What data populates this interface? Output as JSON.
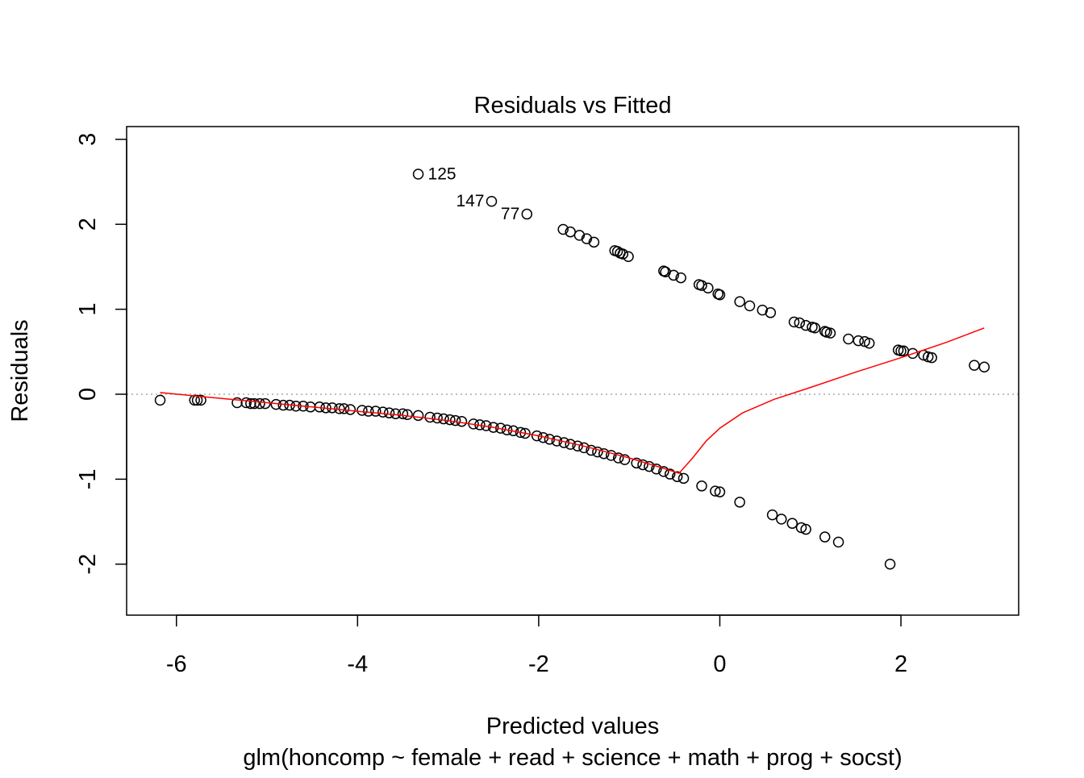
{
  "chart_data": {
    "type": "scatter",
    "title": "Residuals vs Fitted",
    "xlabel": "Predicted values",
    "subtitle": "glm(honcomp ~ female + read + science + math + prog + socst)",
    "ylabel": "Residuals",
    "xlim": [
      -6.55,
      3.3
    ],
    "ylim": [
      -2.6,
      3.15
    ],
    "xticks": [
      -6,
      -4,
      -2,
      0,
      2
    ],
    "yticks": [
      -2,
      -1,
      0,
      1,
      2,
      3
    ],
    "xtick_labels": [
      "-6",
      "-4",
      "-2",
      "0",
      "2"
    ],
    "ytick_labels": [
      "-2",
      "-1",
      "0",
      "1",
      "2",
      "3"
    ],
    "reference_line_y": 0,
    "colors": {
      "points": "#000000",
      "smooth": "#ff0000",
      "reference": "#bebebe"
    },
    "grid": false,
    "legend": "none",
    "labeled_points": [
      {
        "label": "125",
        "x": -3.33,
        "y": 2.59
      },
      {
        "label": "147",
        "x": -2.52,
        "y": 2.27
      },
      {
        "label": "77",
        "x": -2.13,
        "y": 2.12
      }
    ],
    "series": [
      {
        "points": [
          [
            -3.33,
            2.59
          ],
          [
            -2.52,
            2.27
          ],
          [
            -2.13,
            2.12
          ],
          [
            -1.73,
            1.94
          ],
          [
            -1.65,
            1.91
          ],
          [
            -1.55,
            1.87
          ],
          [
            -1.47,
            1.83
          ],
          [
            -1.39,
            1.79
          ],
          [
            -1.16,
            1.69
          ],
          [
            -1.13,
            1.68
          ],
          [
            -1.1,
            1.66
          ],
          [
            -1.07,
            1.65
          ],
          [
            -1.01,
            1.62
          ],
          [
            -0.62,
            1.45
          ],
          [
            -0.6,
            1.44
          ],
          [
            -0.51,
            1.4
          ],
          [
            -0.43,
            1.37
          ],
          [
            -0.23,
            1.29
          ],
          [
            -0.2,
            1.28
          ],
          [
            -0.13,
            1.25
          ],
          [
            -0.02,
            1.18
          ],
          [
            0.0,
            1.17
          ],
          [
            0.22,
            1.09
          ],
          [
            0.33,
            1.04
          ],
          [
            0.47,
            0.99
          ],
          [
            0.56,
            0.96
          ],
          [
            0.82,
            0.85
          ],
          [
            0.88,
            0.84
          ],
          [
            0.95,
            0.81
          ],
          [
            1.02,
            0.79
          ],
          [
            1.05,
            0.78
          ],
          [
            1.16,
            0.74
          ],
          [
            1.18,
            0.73
          ],
          [
            1.22,
            0.72
          ],
          [
            1.42,
            0.65
          ],
          [
            1.53,
            0.63
          ],
          [
            1.6,
            0.62
          ],
          [
            1.65,
            0.6
          ],
          [
            1.97,
            0.52
          ],
          [
            2.0,
            0.51
          ],
          [
            2.03,
            0.51
          ],
          [
            2.13,
            0.48
          ],
          [
            2.25,
            0.46
          ],
          [
            2.3,
            0.44
          ],
          [
            2.34,
            0.43
          ],
          [
            2.81,
            0.34
          ],
          [
            2.92,
            0.32
          ],
          [
            -6.18,
            -0.07
          ],
          [
            -5.8,
            -0.07
          ],
          [
            -5.77,
            -0.07
          ],
          [
            -5.73,
            -0.07
          ],
          [
            -5.33,
            -0.1
          ],
          [
            -5.23,
            -0.1
          ],
          [
            -5.18,
            -0.11
          ],
          [
            -5.14,
            -0.11
          ],
          [
            -5.08,
            -0.11
          ],
          [
            -5.02,
            -0.11
          ],
          [
            -4.9,
            -0.12
          ],
          [
            -4.82,
            -0.13
          ],
          [
            -4.75,
            -0.13
          ],
          [
            -4.68,
            -0.14
          ],
          [
            -4.6,
            -0.14
          ],
          [
            -4.52,
            -0.15
          ],
          [
            -4.42,
            -0.15
          ],
          [
            -4.35,
            -0.16
          ],
          [
            -4.28,
            -0.16
          ],
          [
            -4.2,
            -0.17
          ],
          [
            -4.15,
            -0.17
          ],
          [
            -4.08,
            -0.18
          ],
          [
            -3.95,
            -0.19
          ],
          [
            -3.88,
            -0.2
          ],
          [
            -3.8,
            -0.2
          ],
          [
            -3.72,
            -0.21
          ],
          [
            -3.65,
            -0.22
          ],
          [
            -3.58,
            -0.23
          ],
          [
            -3.5,
            -0.23
          ],
          [
            -3.45,
            -0.24
          ],
          [
            -3.33,
            -0.25
          ],
          [
            -3.2,
            -0.27
          ],
          [
            -3.12,
            -0.28
          ],
          [
            -3.05,
            -0.29
          ],
          [
            -2.98,
            -0.3
          ],
          [
            -2.92,
            -0.31
          ],
          [
            -2.85,
            -0.32
          ],
          [
            -2.72,
            -0.35
          ],
          [
            -2.65,
            -0.36
          ],
          [
            -2.58,
            -0.37
          ],
          [
            -2.5,
            -0.39
          ],
          [
            -2.42,
            -0.4
          ],
          [
            -2.35,
            -0.42
          ],
          [
            -2.28,
            -0.43
          ],
          [
            -2.2,
            -0.45
          ],
          [
            -2.15,
            -0.46
          ],
          [
            -2.02,
            -0.49
          ],
          [
            -1.95,
            -0.51
          ],
          [
            -1.88,
            -0.53
          ],
          [
            -1.8,
            -0.55
          ],
          [
            -1.72,
            -0.57
          ],
          [
            -1.65,
            -0.59
          ],
          [
            -1.57,
            -0.61
          ],
          [
            -1.5,
            -0.63
          ],
          [
            -1.42,
            -0.66
          ],
          [
            -1.35,
            -0.68
          ],
          [
            -1.28,
            -0.7
          ],
          [
            -1.2,
            -0.72
          ],
          [
            -1.12,
            -0.75
          ],
          [
            -1.05,
            -0.77
          ],
          [
            -0.92,
            -0.81
          ],
          [
            -0.85,
            -0.83
          ],
          [
            -0.78,
            -0.85
          ],
          [
            -0.7,
            -0.88
          ],
          [
            -0.62,
            -0.91
          ],
          [
            -0.55,
            -0.94
          ],
          [
            -0.47,
            -0.97
          ],
          [
            -0.4,
            -0.99
          ],
          [
            -0.2,
            -1.08
          ],
          [
            -0.05,
            -1.14
          ],
          [
            0.0,
            -1.15
          ],
          [
            0.22,
            -1.27
          ],
          [
            0.58,
            -1.42
          ],
          [
            0.68,
            -1.47
          ],
          [
            0.8,
            -1.52
          ],
          [
            0.9,
            -1.57
          ],
          [
            0.95,
            -1.59
          ],
          [
            1.16,
            -1.68
          ],
          [
            1.31,
            -1.74
          ],
          [
            1.88,
            -2.0
          ]
        ]
      }
    ],
    "smooth_line": [
      [
        -6.18,
        0.02
      ],
      [
        -5.5,
        -0.05
      ],
      [
        -5.0,
        -0.1
      ],
      [
        -4.5,
        -0.15
      ],
      [
        -4.0,
        -0.2
      ],
      [
        -3.5,
        -0.25
      ],
      [
        -3.0,
        -0.31
      ],
      [
        -2.5,
        -0.39
      ],
      [
        -2.0,
        -0.49
      ],
      [
        -1.5,
        -0.61
      ],
      [
        -1.0,
        -0.75
      ],
      [
        -0.6,
        -0.88
      ],
      [
        -0.45,
        -0.93
      ],
      [
        -0.3,
        -0.75
      ],
      [
        -0.15,
        -0.55
      ],
      [
        0.0,
        -0.4
      ],
      [
        0.25,
        -0.22
      ],
      [
        0.6,
        -0.06
      ],
      [
        1.0,
        0.08
      ],
      [
        1.5,
        0.26
      ],
      [
        2.0,
        0.43
      ],
      [
        2.5,
        0.61
      ],
      [
        2.92,
        0.78
      ]
    ]
  }
}
